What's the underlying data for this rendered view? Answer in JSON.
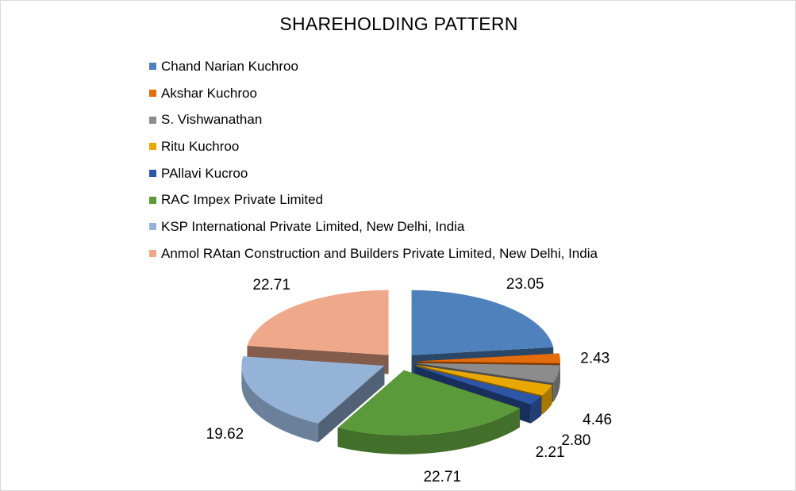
{
  "chart_data": {
    "type": "pie",
    "title": "SHAREHOLDING PATTERN",
    "legend_position": "top",
    "exploded": true,
    "three_d": true,
    "categories": [
      "Chand Narian Kuchroo",
      "Akshar Kuchroo",
      "S. Vishwanathan",
      "Ritu Kuchroo",
      "PAllavi Kucroo",
      "RAC Impex Private Limited",
      "KSP International Private Limited, New Delhi, India",
      "Anmol RAtan Construction and Builders Private Limited, New Delhi, India"
    ],
    "values": [
      23.05,
      2.43,
      4.46,
      2.8,
      2.21,
      22.71,
      19.62,
      22.71
    ],
    "value_labels": [
      "23.05",
      "2.43",
      "4.46",
      "2.80",
      "2.21",
      "22.71",
      "19.62",
      "22.71"
    ],
    "colors": [
      "#4f81bd",
      "#e46c0a",
      "#8c8c8c",
      "#e8a800",
      "#2e56a6",
      "#5b9a3a",
      "#95b3d7",
      "#f0a88a"
    ]
  }
}
